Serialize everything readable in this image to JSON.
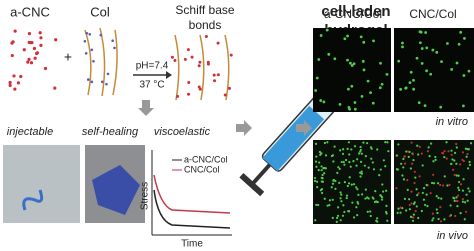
{
  "schema": {
    "components": [
      {
        "label": "a-CNC"
      },
      {
        "label": "Col"
      },
      {
        "label_lines": [
          "Schiff base",
          "bonds"
        ]
      }
    ],
    "conditions": [
      "pH=7.4",
      "37 °C"
    ]
  },
  "center": {
    "label_lines": [
      "cell-laden",
      "hydrogel"
    ]
  },
  "properties": [
    {
      "label": "injectable"
    },
    {
      "label": "self-healing"
    },
    {
      "label": "viscoelastic"
    }
  ],
  "plot": {
    "series": [
      "a-CNC/Col",
      "CNC/Col"
    ],
    "y_label": "Stress",
    "x_label": "Time"
  },
  "images": {
    "columns": [
      "a-CNC/Col",
      "CNC/Col"
    ],
    "rows": [
      "in vitro",
      "in vivo"
    ]
  }
}
